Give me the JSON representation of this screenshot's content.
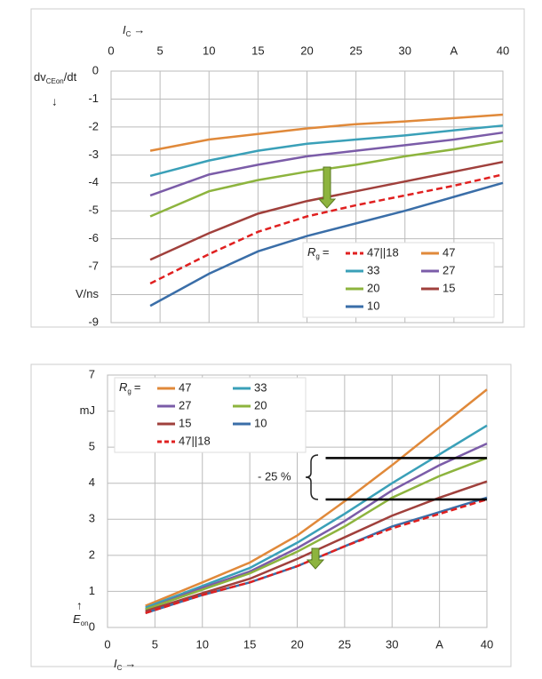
{
  "chart_data": [
    {
      "type": "line",
      "x_label": {
        "main": "I",
        "sub": "C",
        "arrow": "→"
      },
      "y_label": {
        "pre": "dv",
        "sub": "CEon",
        "post": "/dt",
        "arrow": "↓"
      },
      "x_axis_position": "top",
      "x": [
        4,
        10,
        15,
        20,
        25,
        30,
        35,
        40
      ],
      "xlim": [
        0,
        40
      ],
      "xticks": [
        0,
        5,
        10,
        15,
        20,
        25,
        30,
        {
          "value": 35,
          "label": "A"
        },
        40
      ],
      "ylim": [
        -9,
        0
      ],
      "yticks": [
        0,
        -1,
        -2,
        -3,
        -4,
        -5,
        -6,
        -7,
        {
          "value": -8,
          "label": "V/ns"
        },
        -9
      ],
      "grid": true,
      "legend_position": "lower right",
      "legend_title": {
        "main": "R",
        "sub": "g",
        "post": "="
      },
      "series": [
        {
          "name": "47||18",
          "color": "#e02020",
          "dashed": true,
          "values": [
            -7.6,
            -6.55,
            -5.75,
            -5.2,
            -4.8,
            -4.45,
            -4.1,
            -3.7
          ]
        },
        {
          "name": "47",
          "color": "#e0893a",
          "values": [
            -2.85,
            -2.45,
            -2.25,
            -2.05,
            -1.9,
            -1.8,
            -1.68,
            -1.56
          ]
        },
        {
          "name": "33",
          "color": "#3aa0b8",
          "values": [
            -3.75,
            -3.2,
            -2.85,
            -2.6,
            -2.45,
            -2.3,
            -2.12,
            -1.95
          ]
        },
        {
          "name": "27",
          "color": "#7b5ca8",
          "values": [
            -4.45,
            -3.7,
            -3.35,
            -3.05,
            -2.85,
            -2.65,
            -2.45,
            -2.2
          ]
        },
        {
          "name": "20",
          "color": "#8db43e",
          "values": [
            -5.2,
            -4.3,
            -3.9,
            -3.6,
            -3.35,
            -3.05,
            -2.8,
            -2.5
          ]
        },
        {
          "name": "15",
          "color": "#a0403c",
          "values": [
            -6.75,
            -5.8,
            -5.1,
            -4.65,
            -4.3,
            -3.95,
            -3.6,
            -3.25
          ]
        },
        {
          "name": "10",
          "color": "#3a6ea8",
          "values": [
            -8.4,
            -7.25,
            -6.45,
            -5.9,
            -5.45,
            -5.0,
            -4.5,
            -4.0
          ]
        }
      ]
    },
    {
      "type": "line",
      "x_label": {
        "main": "I",
        "sub": "C",
        "arrow": "→"
      },
      "y_label": {
        "main": "E",
        "sub": "on",
        "arrow": "↑"
      },
      "x_axis_position": "bottom",
      "x": [
        4,
        10,
        15,
        20,
        25,
        30,
        35,
        40
      ],
      "xlim": [
        0,
        40
      ],
      "xticks": [
        0,
        5,
        10,
        15,
        20,
        25,
        30,
        {
          "value": 35,
          "label": "A"
        },
        40
      ],
      "ylim": [
        0,
        7
      ],
      "yticks": [
        0,
        1,
        2,
        3,
        4,
        5,
        {
          "value": 6,
          "label": "mJ"
        },
        7
      ],
      "grid": true,
      "legend_position": "upper left",
      "legend_title": {
        "main": "R",
        "sub": "g",
        "post": "="
      },
      "annotation": {
        "text": "- 25 %",
        "levels": [
          4.7,
          3.55
        ],
        "x_start": 23
      },
      "series": [
        {
          "name": "47",
          "color": "#e0893a",
          "values": [
            0.6,
            1.25,
            1.8,
            2.55,
            3.5,
            4.5,
            5.55,
            6.6
          ]
        },
        {
          "name": "33",
          "color": "#3aa0b8",
          "values": [
            0.55,
            1.15,
            1.65,
            2.35,
            3.15,
            4.0,
            4.8,
            5.6
          ]
        },
        {
          "name": "27",
          "color": "#7b5ca8",
          "values": [
            0.5,
            1.1,
            1.55,
            2.2,
            2.95,
            3.8,
            4.5,
            5.1
          ]
        },
        {
          "name": "20",
          "color": "#8db43e",
          "values": [
            0.5,
            1.05,
            1.5,
            2.1,
            2.8,
            3.6,
            4.2,
            4.7
          ]
        },
        {
          "name": "15",
          "color": "#a0403c",
          "values": [
            0.45,
            0.95,
            1.35,
            1.9,
            2.5,
            3.1,
            3.6,
            4.05
          ]
        },
        {
          "name": "10",
          "color": "#3a6ea8",
          "values": [
            0.4,
            0.9,
            1.25,
            1.7,
            2.25,
            2.8,
            3.2,
            3.6
          ]
        },
        {
          "name": "47||18",
          "color": "#e02020",
          "dashed": true,
          "values": [
            0.4,
            0.9,
            1.25,
            1.7,
            2.25,
            2.75,
            3.15,
            3.55
          ]
        }
      ]
    }
  ]
}
